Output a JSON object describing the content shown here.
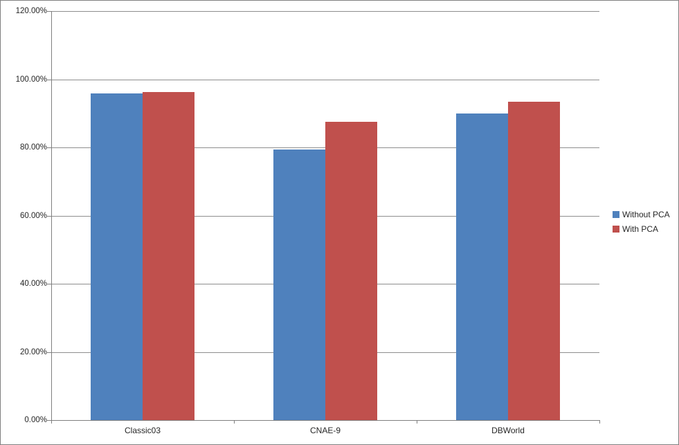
{
  "chart_data": {
    "type": "bar",
    "title": "",
    "categories": [
      "Classic03",
      "CNAE-9",
      "DBWorld"
    ],
    "series": [
      {
        "name": "Without PCA",
        "color": "#4F81BD",
        "values": [
          95.8,
          79.3,
          90.0
        ]
      },
      {
        "name": "With PCA",
        "color": "#C0504D",
        "values": [
          96.2,
          87.5,
          93.5
        ]
      }
    ],
    "value_unit": "%",
    "ylabel": "",
    "xlabel": "",
    "ylim": [
      0,
      120
    ],
    "ytick_step": 20,
    "ytick_labels": [
      "0.00%",
      "20.00%",
      "40.00%",
      "60.00%",
      "80.00%",
      "100.00%",
      "120.00%"
    ],
    "grid": true,
    "legend_position": "right"
  },
  "style_colors": {
    "series_without_pca": "#4F81BD",
    "series_with_pca": "#C0504D",
    "gridline": "#8E8E8E",
    "axis": "#7F7F7F",
    "text": "#262626",
    "chart_border": "#808080",
    "background": "#FFFFFF"
  }
}
